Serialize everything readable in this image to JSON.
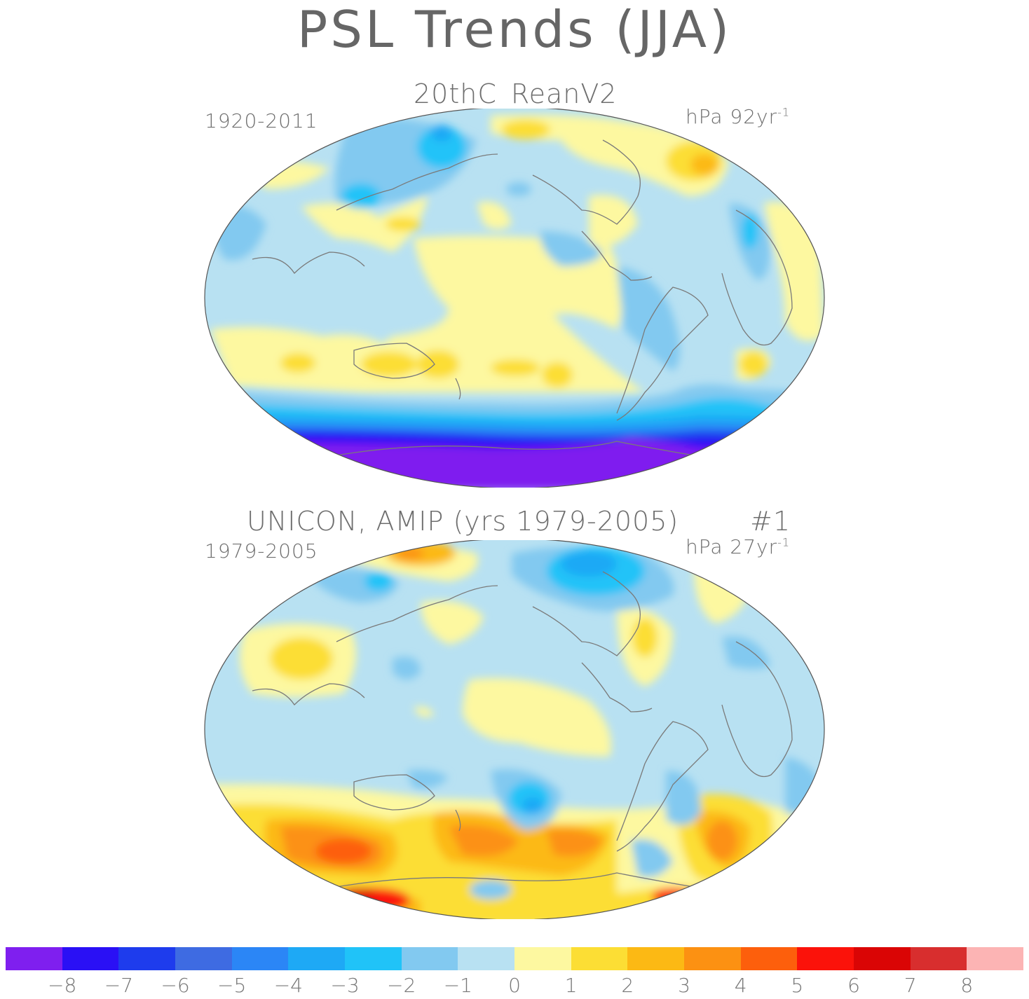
{
  "title": "PSL Trends (JJA)",
  "panels": [
    {
      "id": "top",
      "subtitle": "20thC_ReanV2",
      "period": "1920-2011",
      "units_prefix": "hPa 92yr",
      "units_exp": "-1",
      "run_label": ""
    },
    {
      "id": "bottom",
      "subtitle": "UNICON, AMIP (yrs 1979-2005)",
      "period": "1979-2005",
      "units_prefix": "hPa 27yr",
      "units_exp": "-1",
      "run_label": "#1"
    }
  ],
  "colorbar": {
    "colors": [
      "#7f1fef",
      "#2a10f5",
      "#1e3ced",
      "#3e6be2",
      "#2b86f6",
      "#1ea9f5",
      "#20c3f8",
      "#82c9f0",
      "#b8e1f2",
      "#fdf8a0",
      "#fcde34",
      "#fcb914",
      "#fc9112",
      "#fd5f0c",
      "#fb120a",
      "#da0505",
      "#d82e2e",
      "#fcb4b4"
    ],
    "ticks": [
      "-8",
      "-7",
      "-6",
      "-5",
      "-4",
      "-3",
      "-2",
      "-1",
      "0",
      "1",
      "2",
      "3",
      "4",
      "5",
      "6",
      "7",
      "8"
    ]
  }
}
